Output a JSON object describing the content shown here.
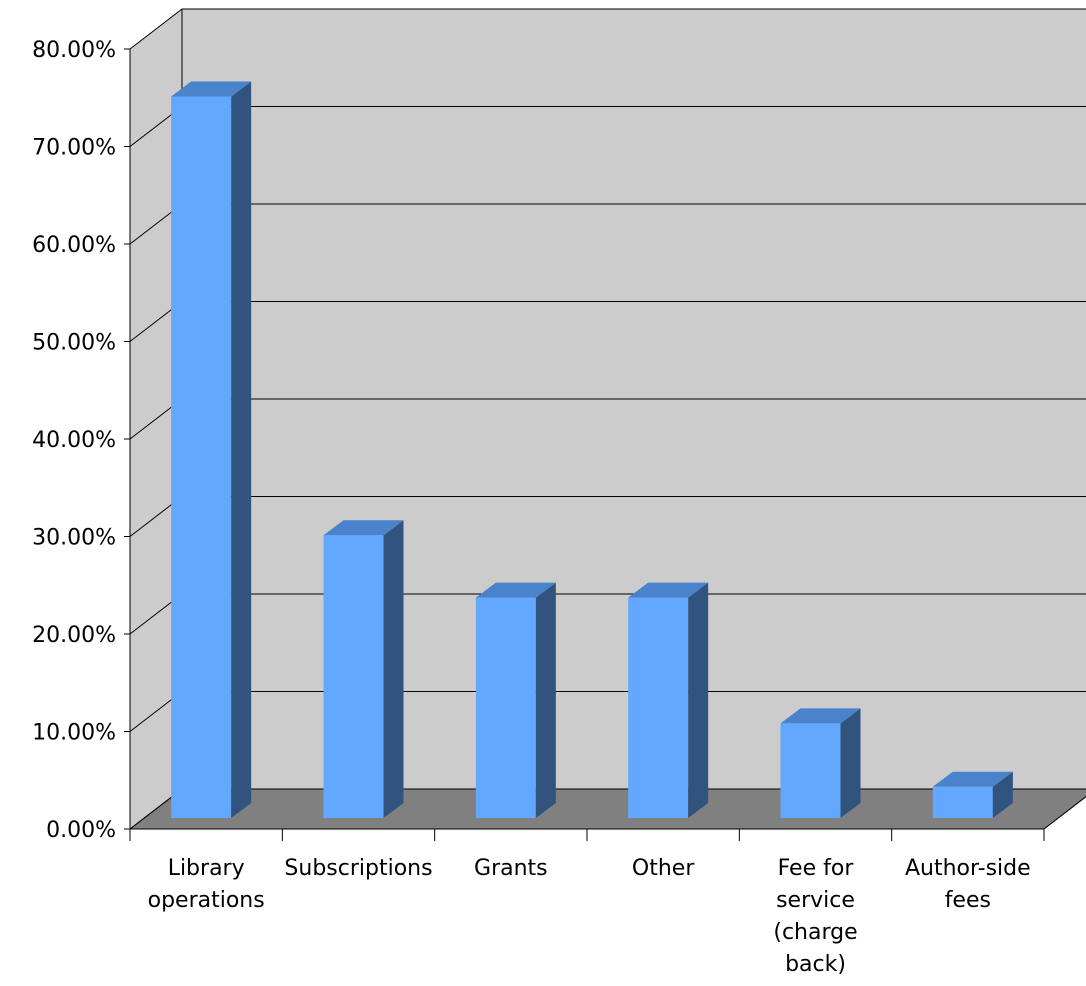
{
  "chart_data": {
    "type": "bar",
    "style": "3d-column",
    "categories": [
      [
        "Library",
        "operations"
      ],
      [
        "Subscriptions"
      ],
      [
        "Grants"
      ],
      [
        "Other"
      ],
      [
        "Fee for",
        "service",
        "(charge",
        "back)"
      ],
      [
        "Author-side",
        "fees"
      ]
    ],
    "values": [
      74.0,
      29.0,
      22.6,
      22.6,
      9.7,
      3.2
    ],
    "ylim": [
      0,
      80
    ],
    "yticks": [
      "0.00%",
      "10.00%",
      "20.00%",
      "30.00%",
      "40.00%",
      "50.00%",
      "60.00%",
      "70.00%",
      "80.00%"
    ],
    "grid": true,
    "legend": "none",
    "colors": {
      "bar_front": "#63a8ff",
      "bar_side": "#30547e",
      "bar_top": "#4a82cb",
      "wall": "#cccccc",
      "floor": "#808080",
      "gridline": "#000000"
    }
  }
}
